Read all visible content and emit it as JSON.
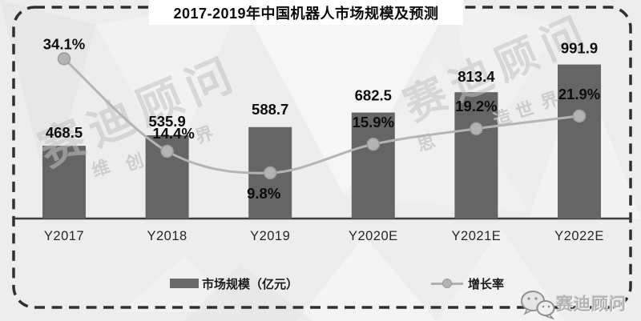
{
  "title_bar": {
    "title": "2017-2019年中国机器人市场规模及预测"
  },
  "chart_data": {
    "type": "bar",
    "subtype": "bar-line-combo",
    "title": "2017-2019年中国机器人市场规模及预测",
    "categories": [
      "Y2017",
      "Y2018",
      "Y2019",
      "Y2020E",
      "Y2021E",
      "Y2022E"
    ],
    "series": [
      {
        "name": "市场规模（亿元）",
        "type": "bar",
        "values": [
          468.5,
          535.9,
          588.7,
          682.5,
          813.4,
          991.9
        ],
        "data_labels": [
          "468.5",
          "535.9",
          "588.7",
          "682.5",
          "813.4",
          "991.9"
        ]
      },
      {
        "name": "增长率",
        "type": "line",
        "values": [
          34.1,
          14.4,
          9.8,
          15.9,
          19.2,
          21.9
        ],
        "data_labels": [
          "34.1%",
          "14.4%",
          "9.8%",
          "15.9%",
          "19.2%",
          "21.9%"
        ]
      }
    ],
    "xlabel": "",
    "ylabel": "",
    "grid": false,
    "legend_position": "bottom",
    "value_axis_visible": false,
    "growth_label_below_index": 2
  },
  "watermark": {
    "big_text": "赛迪顾问",
    "small_chars_left": [
      "维",
      "创",
      "界"
    ],
    "small_chars_right": [
      "思",
      "造",
      "世",
      "界"
    ]
  },
  "footer_logo": {
    "text": "赛迪顾问",
    "icon": "wechat-bubbles-icon"
  },
  "colors": {
    "background": "#ededed",
    "bar": "#656565",
    "line": "#b4b4b4",
    "marker_fill": "#b3b3b3",
    "marker_stroke": "#9d9d9d",
    "axis": "#3d3d3d",
    "dashed_border": "#2f2f2f",
    "title_background": "#ffffff",
    "label_text": "#0d0d0d",
    "axis_label_text": "#262626",
    "watermark": "#c3c3c3"
  }
}
